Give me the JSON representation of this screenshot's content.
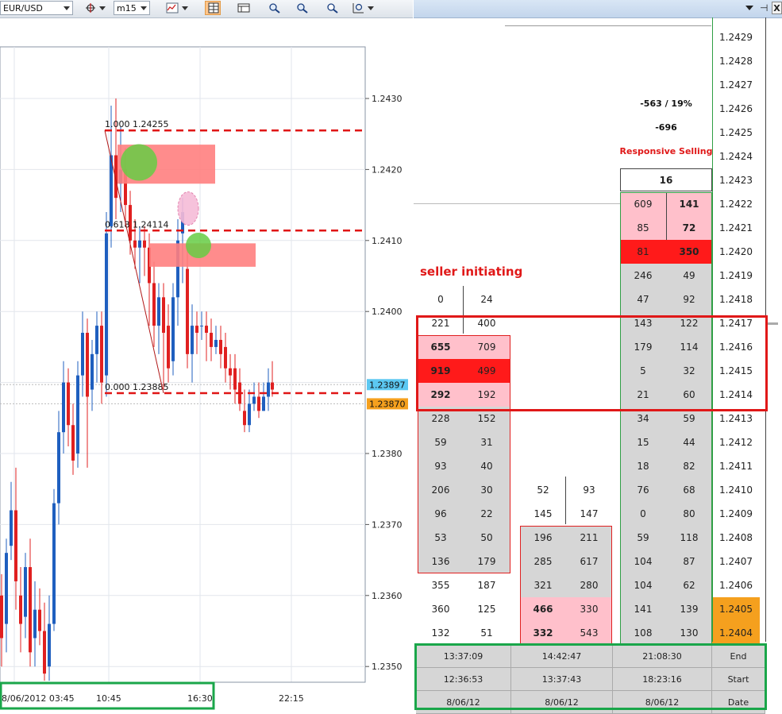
{
  "toolbar": {
    "symbol": "EUR/USD",
    "timeframe": "m15"
  },
  "chart": {
    "price_labels": [
      {
        "text": "1.2430",
        "price": 1.243
      },
      {
        "text": "1.2420",
        "price": 1.242
      },
      {
        "text": "1.2410",
        "price": 1.241
      },
      {
        "text": "1.2400",
        "price": 1.24
      },
      {
        "text": "1.2380",
        "price": 1.238
      },
      {
        "text": "1.2370",
        "price": 1.237
      },
      {
        "text": "1.2360",
        "price": 1.236
      },
      {
        "text": "1.2350",
        "price": 1.235
      }
    ],
    "bid_tag": {
      "text": "1.23897",
      "price": 1.23897,
      "color": "#5cc8f2"
    },
    "ask_tag": {
      "text": "1.23870",
      "price": 1.2387,
      "color": "#f5a01e"
    },
    "time_labels": [
      "8/06/2012 03:45",
      "10:45",
      "16:30",
      "22:15"
    ],
    "fib_levels": [
      {
        "text": "1.000 1.24255",
        "price": 1.24255
      },
      {
        "text": "0.618 1.24114",
        "price": 1.24114
      },
      {
        "text": "0.000 1.23885",
        "price": 1.23885
      }
    ],
    "colors": {
      "up": "#1f5fbf",
      "down": "#e02020",
      "fib": "#e01515",
      "zone": "#ff7f7f"
    }
  },
  "dom": {
    "annotations": {
      "delta_pct": "-563 / 19%",
      "delta": "-696",
      "label": "Responsive Selling",
      "summary_count": "16",
      "seller_label": "seller initiating"
    },
    "prices": [
      "1.2429",
      "1.2428",
      "1.2427",
      "1.2426",
      "1.2425",
      "1.2424",
      "1.2423",
      "1.2422",
      "1.2421",
      "1.2420",
      "1.2419",
      "1.2418",
      "1.2417",
      "1.2416",
      "1.2415",
      "1.2414",
      "1.2413",
      "1.2412",
      "1.2411",
      "1.2410",
      "1.2409",
      "1.2408",
      "1.2407",
      "1.2406",
      "1.2405",
      "1.2404"
    ],
    "highlighted_prices": [
      "1.2405",
      "1.2404"
    ],
    "col_recent": [
      [
        "609",
        "141"
      ],
      [
        "85",
        "72"
      ],
      [
        "81",
        "350"
      ],
      [
        "246",
        "49"
      ],
      [
        "47",
        "92"
      ],
      [
        "143",
        "122"
      ],
      [
        "179",
        "114"
      ],
      [
        "5",
        "32"
      ],
      [
        "21",
        "60"
      ],
      [
        "34",
        "59"
      ],
      [
        "15",
        "44"
      ],
      [
        "18",
        "82"
      ],
      [
        "76",
        "68"
      ],
      [
        "0",
        "80"
      ],
      [
        "59",
        "118"
      ],
      [
        "104",
        "87"
      ],
      [
        "104",
        "62"
      ],
      [
        "141",
        "139"
      ],
      [
        "108",
        "130"
      ]
    ],
    "col_middle": [
      [
        "52",
        "93"
      ],
      [
        "145",
        "147"
      ],
      [
        "196",
        "211"
      ],
      [
        "285",
        "617"
      ],
      [
        "321",
        "280"
      ],
      [
        "466",
        "330"
      ],
      [
        "332",
        "543"
      ]
    ],
    "col_left": [
      [
        "0",
        "24"
      ],
      [
        "221",
        "400"
      ],
      [
        "655",
        "709"
      ],
      [
        "919",
        "499"
      ],
      [
        "292",
        "192"
      ],
      [
        "228",
        "152"
      ],
      [
        "59",
        "31"
      ],
      [
        "93",
        "40"
      ],
      [
        "206",
        "30"
      ],
      [
        "96",
        "22"
      ],
      [
        "53",
        "50"
      ],
      [
        "136",
        "179"
      ],
      [
        "355",
        "187"
      ],
      [
        "360",
        "125"
      ],
      [
        "132",
        "51"
      ]
    ],
    "footer": {
      "end": [
        "13:37:09",
        "14:42:47",
        "21:08:30"
      ],
      "start": [
        "12:36:53",
        "13:37:43",
        "18:23:16"
      ],
      "date": [
        "8/06/12",
        "8/06/12",
        "8/06/12"
      ],
      "labels": [
        "End",
        "Start",
        "Date"
      ]
    }
  }
}
